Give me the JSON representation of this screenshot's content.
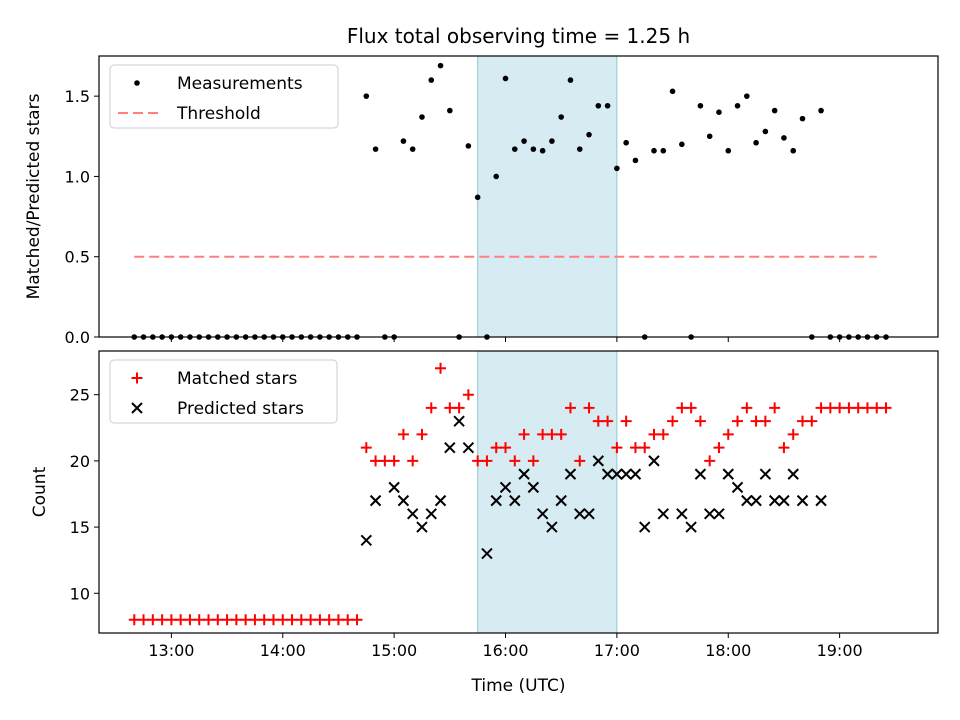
{
  "figure": {
    "title": "Flux total observing time = 1.25 h",
    "xlabel": "Time (UTC)"
  },
  "chart_data": [
    {
      "type": "scatter",
      "panel": "top",
      "title": "Flux total observing time = 1.25 h",
      "xlabel": "",
      "ylabel": "Matched/Predicted stars",
      "xlim": [
        "12:21",
        "19:53"
      ],
      "ylim": [
        0,
        1.75
      ],
      "x_ticks": [
        "13:00",
        "14:00",
        "15:00",
        "16:00",
        "17:00",
        "18:00",
        "19:00"
      ],
      "y_ticks": [
        "0.0",
        "0.5",
        "1.0",
        "1.5"
      ],
      "y_tick_values": [
        0,
        0.5,
        1.0,
        1.5
      ],
      "grid": false,
      "legend_position": "upper-left",
      "shaded_region": {
        "x_start": "15:45",
        "x_end": "17:00",
        "color": "#add8e6"
      },
      "series": [
        {
          "name": "Measurements",
          "marker": "dot",
          "color": "#000000",
          "x": [
            "12:40",
            "12:45",
            "12:50",
            "12:55",
            "13:00",
            "13:05",
            "13:10",
            "13:15",
            "13:20",
            "13:25",
            "13:30",
            "13:35",
            "13:40",
            "13:45",
            "13:50",
            "13:55",
            "14:00",
            "14:05",
            "14:10",
            "14:15",
            "14:20",
            "14:25",
            "14:30",
            "14:35",
            "14:40",
            "14:45",
            "14:50",
            "14:55",
            "15:00",
            "15:05",
            "15:10",
            "15:15",
            "15:20",
            "15:25",
            "15:30",
            "15:35",
            "15:40",
            "15:45",
            "15:50",
            "15:55",
            "16:00",
            "16:05",
            "16:10",
            "16:15",
            "16:20",
            "16:25",
            "16:30",
            "16:35",
            "16:40",
            "16:45",
            "16:50",
            "16:55",
            "17:00",
            "17:05",
            "17:10",
            "17:15",
            "17:20",
            "17:25",
            "17:30",
            "17:35",
            "17:40",
            "17:45",
            "17:50",
            "17:55",
            "18:00",
            "18:05",
            "18:10",
            "18:15",
            "18:20",
            "18:25",
            "18:30",
            "18:35",
            "18:40",
            "18:45",
            "18:50",
            "18:55",
            "19:00",
            "19:05",
            "19:10",
            "19:15",
            "19:20",
            "19:25"
          ],
          "y": [
            0,
            0,
            0,
            0,
            0,
            0,
            0,
            0,
            0,
            0,
            0,
            0,
            0,
            0,
            0,
            0,
            0,
            0,
            0,
            0,
            0,
            0,
            0,
            0,
            0,
            1.5,
            1.17,
            0,
            0,
            1.22,
            1.17,
            1.37,
            1.6,
            1.69,
            1.41,
            0,
            1.19,
            0.87,
            0,
            1.0,
            1.61,
            1.17,
            1.22,
            1.17,
            1.16,
            1.22,
            1.37,
            1.6,
            1.17,
            1.26,
            1.44,
            1.44,
            1.05,
            1.21,
            1.1,
            0,
            1.16,
            1.16,
            1.53,
            1.2,
            0,
            1.44,
            1.25,
            1.4,
            1.16,
            1.44,
            1.5,
            1.21,
            1.28,
            1.41,
            1.24,
            1.16,
            1.36,
            0,
            1.41,
            0,
            0,
            0,
            0,
            0,
            0,
            0
          ]
        },
        {
          "name": "Threshold",
          "style": "dashed",
          "color": "#ff7f7f",
          "x": [
            "12:40",
            "19:20"
          ],
          "y": [
            0.5,
            0.5
          ]
        }
      ]
    },
    {
      "type": "scatter",
      "panel": "bottom",
      "xlabel": "Time (UTC)",
      "ylabel": "Count",
      "xlim": [
        "12:21",
        "19:53"
      ],
      "ylim": [
        7.0,
        28.3
      ],
      "x_ticks": [
        "13:00",
        "14:00",
        "15:00",
        "16:00",
        "17:00",
        "18:00",
        "19:00"
      ],
      "y_ticks": [
        "10",
        "15",
        "20",
        "25"
      ],
      "y_tick_values": [
        10,
        15,
        20,
        25
      ],
      "grid": false,
      "legend_position": "upper-left",
      "shaded_region": {
        "x_start": "15:45",
        "x_end": "17:00",
        "color": "#add8e6"
      },
      "series": [
        {
          "name": "Matched stars",
          "marker": "plus",
          "color": "#ff0000",
          "x": [
            "12:40",
            "12:45",
            "12:50",
            "12:55",
            "13:00",
            "13:05",
            "13:10",
            "13:15",
            "13:20",
            "13:25",
            "13:30",
            "13:35",
            "13:40",
            "13:45",
            "13:50",
            "13:55",
            "14:00",
            "14:05",
            "14:10",
            "14:15",
            "14:20",
            "14:25",
            "14:30",
            "14:35",
            "14:40",
            "14:45",
            "14:50",
            "14:55",
            "15:00",
            "15:05",
            "15:10",
            "15:15",
            "15:20",
            "15:25",
            "15:30",
            "15:35",
            "15:40",
            "15:45",
            "15:50",
            "15:55",
            "16:00",
            "16:05",
            "16:10",
            "16:15",
            "16:20",
            "16:25",
            "16:30",
            "16:35",
            "16:40",
            "16:45",
            "16:50",
            "16:55",
            "17:00",
            "17:05",
            "17:10",
            "17:15",
            "17:20",
            "17:25",
            "17:30",
            "17:35",
            "17:40",
            "17:45",
            "17:50",
            "17:55",
            "18:00",
            "18:05",
            "18:10",
            "18:15",
            "18:20",
            "18:25",
            "18:30",
            "18:35",
            "18:40",
            "18:45",
            "18:50",
            "18:55",
            "19:00",
            "19:05",
            "19:10",
            "19:15",
            "19:20",
            "19:25"
          ],
          "y": [
            8,
            8,
            8,
            8,
            8,
            8,
            8,
            8,
            8,
            8,
            8,
            8,
            8,
            8,
            8,
            8,
            8,
            8,
            8,
            8,
            8,
            8,
            8,
            8,
            8,
            21,
            20,
            20,
            20,
            22,
            20,
            22,
            24,
            27,
            24,
            24,
            25,
            20,
            20,
            21,
            21,
            20,
            22,
            20,
            22,
            22,
            22,
            24,
            20,
            24,
            23,
            23,
            21,
            23,
            21,
            21,
            22,
            22,
            23,
            24,
            24,
            23,
            20,
            21,
            22,
            23,
            24,
            23,
            23,
            24,
            21,
            22,
            23,
            23,
            24,
            24,
            24,
            24,
            24,
            24,
            24,
            24
          ]
        },
        {
          "name": "Predicted stars",
          "marker": "x",
          "color": "#000000",
          "x": [
            "14:45",
            "14:50",
            "15:00",
            "15:05",
            "15:10",
            "15:15",
            "15:20",
            "15:25",
            "15:30",
            "15:35",
            "15:40",
            "15:50",
            "15:55",
            "16:00",
            "16:05",
            "16:10",
            "16:15",
            "16:20",
            "16:25",
            "16:30",
            "16:35",
            "16:40",
            "16:45",
            "16:50",
            "16:55",
            "17:00",
            "17:05",
            "17:10",
            "17:15",
            "17:20",
            "17:25",
            "17:35",
            "17:40",
            "17:45",
            "17:50",
            "17:55",
            "18:00",
            "18:05",
            "18:10",
            "18:15",
            "18:20",
            "18:25",
            "18:30",
            "18:35",
            "18:40",
            "18:50"
          ],
          "y": [
            14,
            17,
            18,
            17,
            16,
            15,
            16,
            17,
            21,
            23,
            21,
            13,
            17,
            18,
            17,
            19,
            18,
            16,
            15,
            17,
            19,
            16,
            16,
            20,
            19,
            19,
            19,
            19,
            15,
            20,
            16,
            16,
            15,
            19,
            16,
            16,
            19,
            18,
            17,
            17,
            19,
            17,
            17,
            19,
            17,
            17
          ]
        }
      ]
    }
  ]
}
